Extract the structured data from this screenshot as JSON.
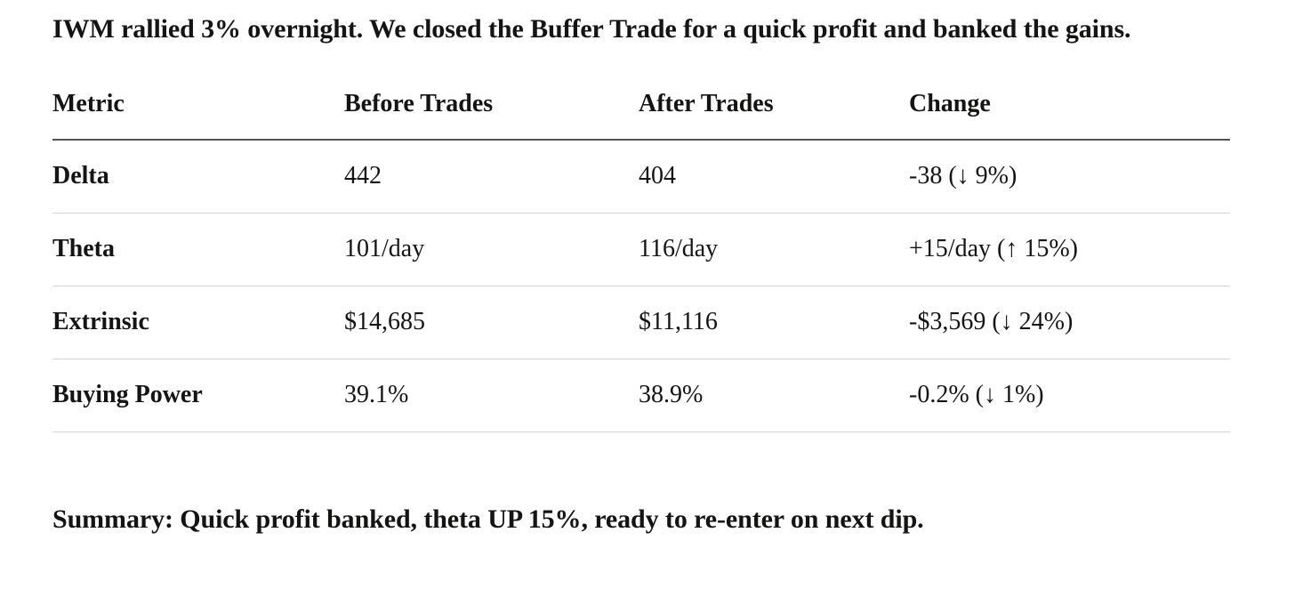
{
  "intro": {
    "text": "IWM rallied 3% overnight. We closed the Buffer Trade for a quick profit and banked the gains."
  },
  "table": {
    "columns": [
      "Metric",
      "Before Trades",
      "After Trades",
      "Change"
    ],
    "rows": [
      {
        "metric": "Delta",
        "before": "442",
        "after": "404",
        "change": "-38 (↓ 9%)"
      },
      {
        "metric": "Theta",
        "before": "101/day",
        "after": "116/day",
        "change": "+15/day (↑ 15%)"
      },
      {
        "metric": "Extrinsic",
        "before": "$14,685",
        "after": "$11,116",
        "change": "-$3,569 (↓ 24%)"
      },
      {
        "metric": "Buying Power",
        "before": "39.1%",
        "after": "38.9%",
        "change": "-0.2% (↓ 1%)"
      }
    ]
  },
  "summary": {
    "text": "Summary: Quick profit banked, theta UP 15%, ready to re-enter on next dip."
  },
  "colors": {
    "text": "#141413",
    "header_rule": "#55534d",
    "row_rule": "#d5d3cc",
    "background": "#ffffff"
  }
}
